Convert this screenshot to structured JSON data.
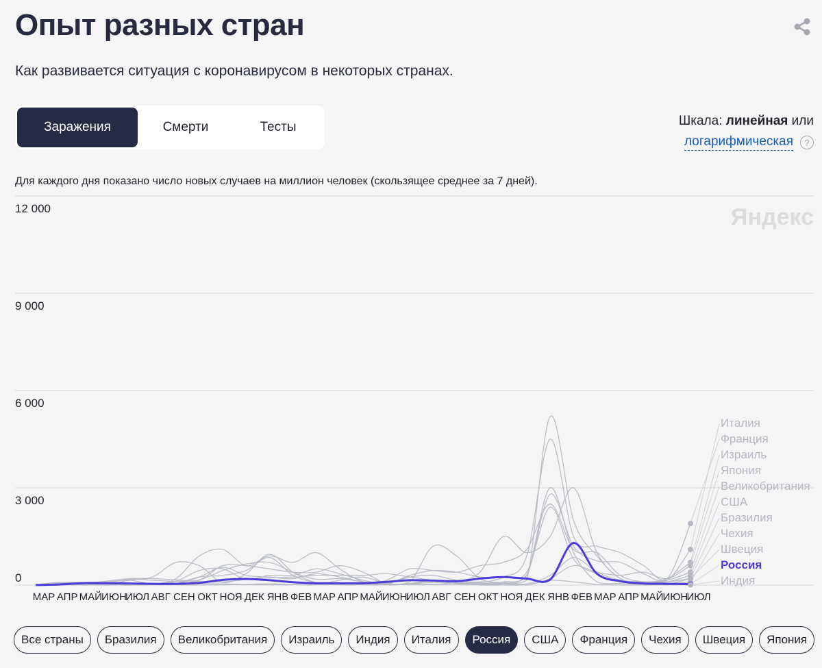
{
  "header": {
    "title": "Опыт разных стран",
    "subtitle": "Как развивается ситуация с коронавирусом в некоторых странах."
  },
  "tabs": [
    {
      "label": "Заражения",
      "active": true
    },
    {
      "label": "Смерти",
      "active": false
    },
    {
      "label": "Тесты",
      "active": false
    }
  ],
  "scale": {
    "prefix": "Шкала:",
    "linear": "линейная",
    "or": "или",
    "log": "логарифмическая",
    "help": "?"
  },
  "note": "Для каждого дня показано число новых случаев на миллион человек (скользящее среднее за 7 дней).",
  "watermark": "Яндекс",
  "colors": {
    "highlight": "#4b3bd8",
    "other": "#b5b8c2",
    "grid": "#d8d8d8",
    "dark": "#262a44"
  },
  "chart_data": {
    "type": "line",
    "ylim": [
      0,
      12000
    ],
    "y_ticks": [
      "12 000",
      "9 000",
      "6 000",
      "3 000",
      "0"
    ],
    "y_tick_values": [
      12000,
      9000,
      6000,
      3000,
      0
    ],
    "months": [
      "МАР",
      "АПР",
      "МАЙ",
      "ИЮН",
      "ИЮЛ",
      "АВГ",
      "СЕН",
      "ОКТ",
      "НОЯ",
      "ДЕК",
      "ЯНВ",
      "ФЕВ",
      "МАР",
      "АПР",
      "МАЙ",
      "ИЮН",
      "ИЮЛ",
      "АВГ",
      "СЕН",
      "ОКТ",
      "НОЯ",
      "ДЕК",
      "ЯНВ",
      "ФЕВ",
      "МАР",
      "АПР",
      "МАЙ",
      "ИЮН",
      "ИЮЛ"
    ],
    "highlight": "Россия",
    "series": [
      {
        "name": "Италия",
        "values": [
          20,
          60,
          40,
          10,
          5,
          10,
          30,
          250,
          550,
          300,
          250,
          200,
          350,
          250,
          100,
          30,
          40,
          80,
          60,
          50,
          100,
          300,
          2800,
          1200,
          750,
          700,
          350,
          150,
          1100
        ]
      },
      {
        "name": "Франция",
        "values": [
          10,
          50,
          30,
          10,
          10,
          30,
          120,
          450,
          500,
          180,
          300,
          300,
          500,
          350,
          150,
          50,
          250,
          300,
          150,
          100,
          250,
          900,
          4500,
          1500,
          1200,
          1000,
          600,
          200,
          1900
        ]
      },
      {
        "name": "Израиль",
        "values": [
          5,
          60,
          20,
          10,
          150,
          250,
          700,
          600,
          80,
          350,
          950,
          400,
          70,
          15,
          10,
          5,
          100,
          1200,
          900,
          200,
          80,
          150,
          5200,
          2000,
          900,
          200,
          100,
          200,
          700
        ]
      },
      {
        "name": "Япония",
        "values": [
          0,
          5,
          5,
          0,
          5,
          10,
          5,
          5,
          10,
          20,
          40,
          20,
          15,
          30,
          40,
          10,
          30,
          150,
          80,
          5,
          2,
          5,
          200,
          600,
          400,
          300,
          400,
          200,
          600
        ]
      },
      {
        "name": "Великобритания",
        "values": [
          10,
          70,
          50,
          10,
          10,
          10,
          50,
          250,
          300,
          450,
          850,
          300,
          80,
          40,
          50,
          150,
          500,
          450,
          400,
          600,
          700,
          1100,
          2500,
          1100,
          1000,
          300,
          100,
          150,
          400
        ]
      },
      {
        "name": "США",
        "values": [
          10,
          80,
          80,
          60,
          180,
          150,
          120,
          160,
          450,
          650,
          700,
          400,
          180,
          200,
          100,
          30,
          300,
          450,
          400,
          250,
          250,
          400,
          2400,
          800,
          350,
          100,
          80,
          100,
          300
        ]
      },
      {
        "name": "Бразилия",
        "values": [
          0,
          10,
          50,
          120,
          200,
          200,
          160,
          110,
          100,
          170,
          220,
          250,
          300,
          300,
          300,
          350,
          250,
          150,
          90,
          70,
          50,
          40,
          300,
          850,
          400,
          150,
          100,
          100,
          200
        ]
      },
      {
        "name": "Чехия",
        "values": [
          5,
          10,
          10,
          5,
          15,
          30,
          200,
          900,
          1100,
          600,
          900,
          700,
          1000,
          500,
          100,
          10,
          30,
          20,
          100,
          400,
          1500,
          1000,
          1500,
          3000,
          1000,
          200,
          20,
          30,
          100
        ]
      },
      {
        "name": "Швеция",
        "values": [
          10,
          60,
          80,
          100,
          150,
          30,
          40,
          150,
          600,
          600,
          500,
          400,
          400,
          600,
          400,
          50,
          50,
          150,
          50,
          40,
          50,
          300,
          3000,
          1000,
          100,
          50,
          30,
          30,
          200
        ]
      },
      {
        "name": "Россия",
        "values": [
          2,
          20,
          60,
          60,
          50,
          40,
          40,
          70,
          160,
          190,
          150,
          90,
          60,
          55,
          60,
          100,
          150,
          140,
          120,
          200,
          250,
          200,
          170,
          1300,
          350,
          120,
          50,
          40,
          30
        ]
      },
      {
        "name": "Индия",
        "values": [
          0,
          2,
          5,
          10,
          25,
          40,
          60,
          50,
          35,
          20,
          10,
          8,
          10,
          150,
          250,
          50,
          20,
          25,
          20,
          15,
          10,
          5,
          150,
          100,
          20,
          5,
          3,
          3,
          10
        ]
      }
    ]
  },
  "country_filters": [
    {
      "label": "Все страны",
      "active": false
    },
    {
      "label": "Бразилия",
      "active": false
    },
    {
      "label": "Великобритания",
      "active": false
    },
    {
      "label": "Израиль",
      "active": false
    },
    {
      "label": "Индия",
      "active": false
    },
    {
      "label": "Италия",
      "active": false
    },
    {
      "label": "Россия",
      "active": true
    },
    {
      "label": "США",
      "active": false
    },
    {
      "label": "Франция",
      "active": false
    },
    {
      "label": "Чехия",
      "active": false
    },
    {
      "label": "Швеция",
      "active": false
    },
    {
      "label": "Япония",
      "active": false
    }
  ]
}
